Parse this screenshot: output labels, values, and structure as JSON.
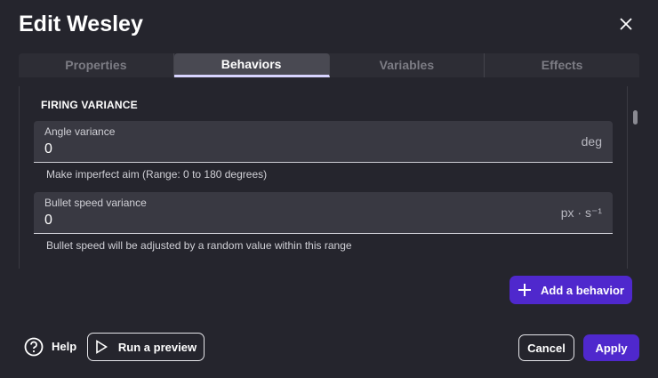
{
  "dialog": {
    "title": "Edit Wesley"
  },
  "tabs": [
    {
      "label": "Properties"
    },
    {
      "label": "Behaviors"
    },
    {
      "label": "Variables"
    },
    {
      "label": "Effects"
    }
  ],
  "active_tab": "Behaviors",
  "section": {
    "title": "FIRING VARIANCE"
  },
  "fields": [
    {
      "label": "Angle variance",
      "value": "0",
      "unit": "deg",
      "help": "Make imperfect aim (Range: 0 to 180 degrees)"
    },
    {
      "label": "Bullet speed variance",
      "value": "0",
      "unit": "px · s⁻¹",
      "help": "Bullet speed will be adjusted by a random value within this range"
    }
  ],
  "buttons": {
    "add_behavior": "Add a behavior",
    "help": "Help",
    "run_preview": "Run a preview",
    "cancel": "Cancel",
    "apply": "Apply"
  },
  "colors": {
    "accent": "#4f28cd",
    "background": "#25252d"
  }
}
